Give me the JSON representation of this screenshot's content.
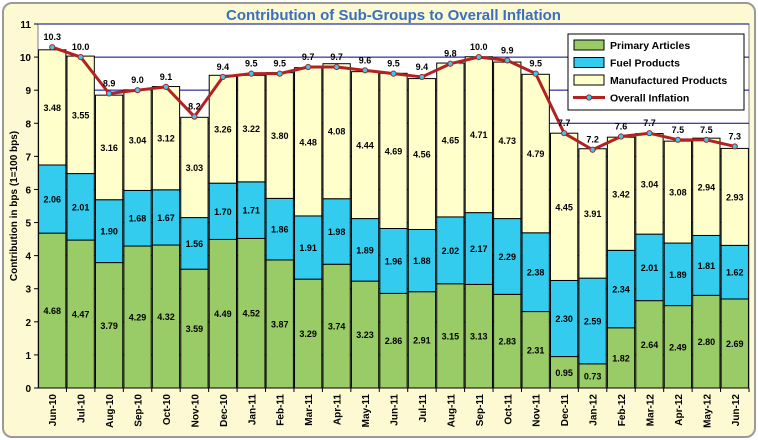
{
  "chart_data": {
    "type": "bar",
    "title": "Contribution of Sub-Groups to Overall Inflation",
    "ylabel": "Contribution in bps (1=100 bps)",
    "ylim": [
      0,
      11
    ],
    "yticks": [
      "0",
      "1",
      "2",
      "3",
      "4",
      "5",
      "6",
      "7",
      "8",
      "9",
      "10",
      "11"
    ],
    "categories": [
      "Jun-10",
      "Jul-10",
      "Aug-10",
      "Sep-10",
      "Oct-10",
      "Nov-10",
      "Dec-10",
      "Jan-11",
      "Feb-11",
      "Mar-11",
      "Apr-11",
      "May-11",
      "Jun-11",
      "Jul-11",
      "Aug-11",
      "Sep-11",
      "Oct-11",
      "Nov-11",
      "Dec-11",
      "Jan-12",
      "Feb-12",
      "Mar-12",
      "Apr-12",
      "May-12",
      "Jun-12"
    ],
    "series": [
      {
        "name": "Primary Articles",
        "kind": "bar",
        "color": "#99cc66",
        "values": [
          4.68,
          4.47,
          3.79,
          4.29,
          4.32,
          3.59,
          4.49,
          4.52,
          3.87,
          3.29,
          3.74,
          3.23,
          2.86,
          2.91,
          3.15,
          3.13,
          2.83,
          2.31,
          0.95,
          0.73,
          1.82,
          2.64,
          2.49,
          2.8,
          2.69
        ]
      },
      {
        "name": "Fuel Products",
        "kind": "bar",
        "color": "#33ccee",
        "values": [
          2.06,
          2.01,
          1.9,
          1.68,
          1.67,
          1.56,
          1.7,
          1.71,
          1.86,
          1.91,
          1.98,
          1.89,
          1.96,
          1.88,
          2.02,
          2.17,
          2.29,
          2.38,
          2.3,
          2.59,
          2.34,
          2.01,
          1.89,
          1.81,
          1.62
        ]
      },
      {
        "name": "Manufactured Products",
        "kind": "bar",
        "color": "#ffffcc",
        "values": [
          3.48,
          3.55,
          3.16,
          3.04,
          3.12,
          3.03,
          3.26,
          3.22,
          3.8,
          4.48,
          4.08,
          4.44,
          4.69,
          4.56,
          4.65,
          4.71,
          4.73,
          4.79,
          4.45,
          3.91,
          3.42,
          3.04,
          3.08,
          2.94,
          2.93
        ]
      },
      {
        "name": "Overall Inflation",
        "kind": "line",
        "color": "#b22222",
        "values": [
          10.3,
          10.0,
          8.9,
          9.0,
          9.1,
          8.2,
          9.4,
          9.5,
          9.5,
          9.7,
          9.7,
          9.6,
          9.5,
          9.4,
          9.8,
          10.0,
          9.9,
          9.5,
          7.7,
          7.2,
          7.6,
          7.7,
          7.5,
          7.5,
          7.3
        ],
        "labels": [
          "10.3",
          "10.0",
          "8.9",
          "9.0",
          "9.1",
          "8.2",
          "9.4",
          "9.5",
          "9.5",
          "9.7",
          "9.7",
          "9.6",
          "9.5",
          "9.4",
          "9.8",
          "10.0",
          "9.9",
          "9.5",
          "7.7",
          "7.2",
          "7.6",
          "7.7",
          "7.5",
          "7.5",
          "7.3"
        ]
      }
    ],
    "legend_position": "top-right",
    "grid": "horizontal",
    "colors": {
      "background": "#fdf9d2",
      "plot_area": "#ffffff",
      "gridline": "#00008b",
      "title": "#3a6fc0",
      "marker": "#33ccee"
    }
  }
}
